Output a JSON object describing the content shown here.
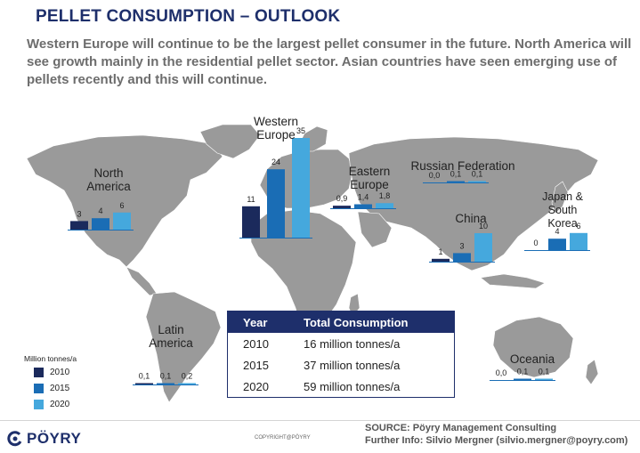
{
  "title": "PELLET CONSUMPTION – OUTLOOK",
  "subtitle": "Western Europe will continue to be the largest pellet consumer in the future. North America will see growth mainly in the residential pellet sector. Asian countries have seen emerging use of pellets recently and this will continue.",
  "legend": {
    "title": "Million tonnes/a",
    "items": [
      {
        "label": "2010",
        "color": "#1b2a5c"
      },
      {
        "label": "2015",
        "color": "#1a6db5"
      },
      {
        "label": "2020",
        "color": "#45a8dd"
      }
    ]
  },
  "chart_data": {
    "type": "bar",
    "categories": [
      "2010",
      "2015",
      "2020"
    ],
    "unit": "Million tonnes/a",
    "regions": [
      {
        "name": "North America",
        "labels": [
          "3",
          "4",
          "6"
        ],
        "values": [
          3,
          4,
          6
        ]
      },
      {
        "name": "Western Europe",
        "labels": [
          "11",
          "24",
          "35"
        ],
        "values": [
          11,
          24,
          35
        ]
      },
      {
        "name": "Eastern Europe",
        "labels": [
          "0,9",
          "1,4",
          "1,8"
        ],
        "values": [
          0.9,
          1.4,
          1.8
        ]
      },
      {
        "name": "Russian Federation",
        "labels": [
          "0,0",
          "0,1",
          "0,1"
        ],
        "values": [
          0.0,
          0.1,
          0.1
        ]
      },
      {
        "name": "China",
        "labels": [
          "1",
          "3",
          "10"
        ],
        "values": [
          1,
          3,
          10
        ]
      },
      {
        "name": "Japan & South Korea",
        "labels": [
          "0",
          "4",
          "6"
        ],
        "values": [
          0,
          4,
          6
        ]
      },
      {
        "name": "Latin America",
        "labels": [
          "0,1",
          "0,1",
          "0,2"
        ],
        "values": [
          0.1,
          0.1,
          0.2
        ]
      },
      {
        "name": "Oceania",
        "labels": [
          "0,0",
          "0,1",
          "0,1"
        ],
        "values": [
          0.0,
          0.1,
          0.1
        ]
      }
    ]
  },
  "table": {
    "headers": [
      "Year",
      "Total Consumption"
    ],
    "rows": [
      [
        "2010",
        "16 million tonnes/a"
      ],
      [
        "2015",
        "37 million tonnes/a"
      ],
      [
        "2020",
        "59 million tonnes/a"
      ]
    ]
  },
  "footer": {
    "logo_text": "PÖYRY",
    "copyright": "COPYRIGHT@PÖYRY",
    "source": "SOURCE: Pöyry Management Consulting",
    "further_info": "Further Info: Silvio Mergner (silvio.mergner@poyry.com)"
  }
}
